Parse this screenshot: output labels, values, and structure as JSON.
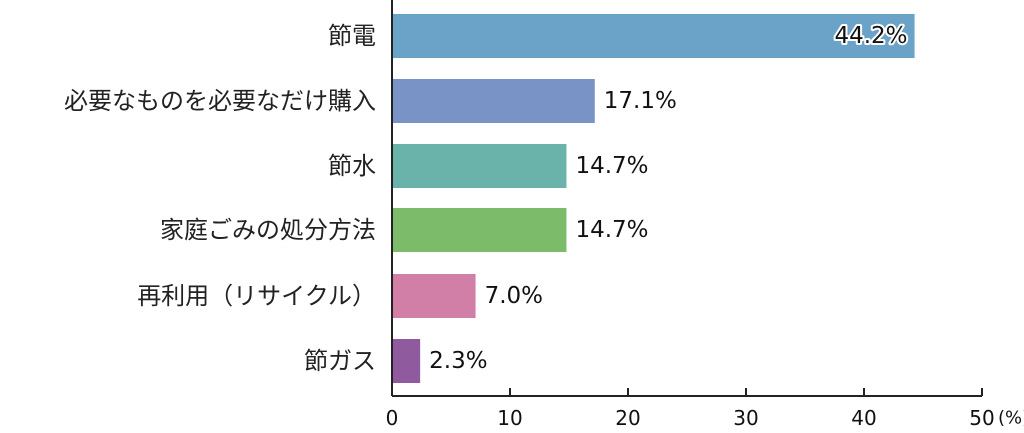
{
  "chart_data": {
    "type": "bar",
    "orientation": "horizontal",
    "categories": [
      "節電",
      "必要なものを必要なだけ購入",
      "節水",
      "家庭ごみの処分方法",
      "再利用（リサイクル）",
      "節ガス"
    ],
    "values": [
      44.2,
      17.1,
      14.7,
      14.7,
      7.0,
      2.3
    ],
    "value_labels": [
      "44.2%",
      "17.1%",
      "14.7%",
      "14.7%",
      "7.0%",
      "2.3%"
    ],
    "colors": [
      "#6aa3c7",
      "#7a93c7",
      "#69b3aa",
      "#7bbb6a",
      "#d17fa6",
      "#8f5a9e"
    ],
    "title": "",
    "xlabel": "",
    "ylabel": "",
    "xlim": [
      0,
      50
    ],
    "x_ticks": [
      "0",
      "10",
      "20",
      "30",
      "40",
      "50"
    ],
    "x_unit": "(%)",
    "grid": false,
    "legend": "none"
  }
}
